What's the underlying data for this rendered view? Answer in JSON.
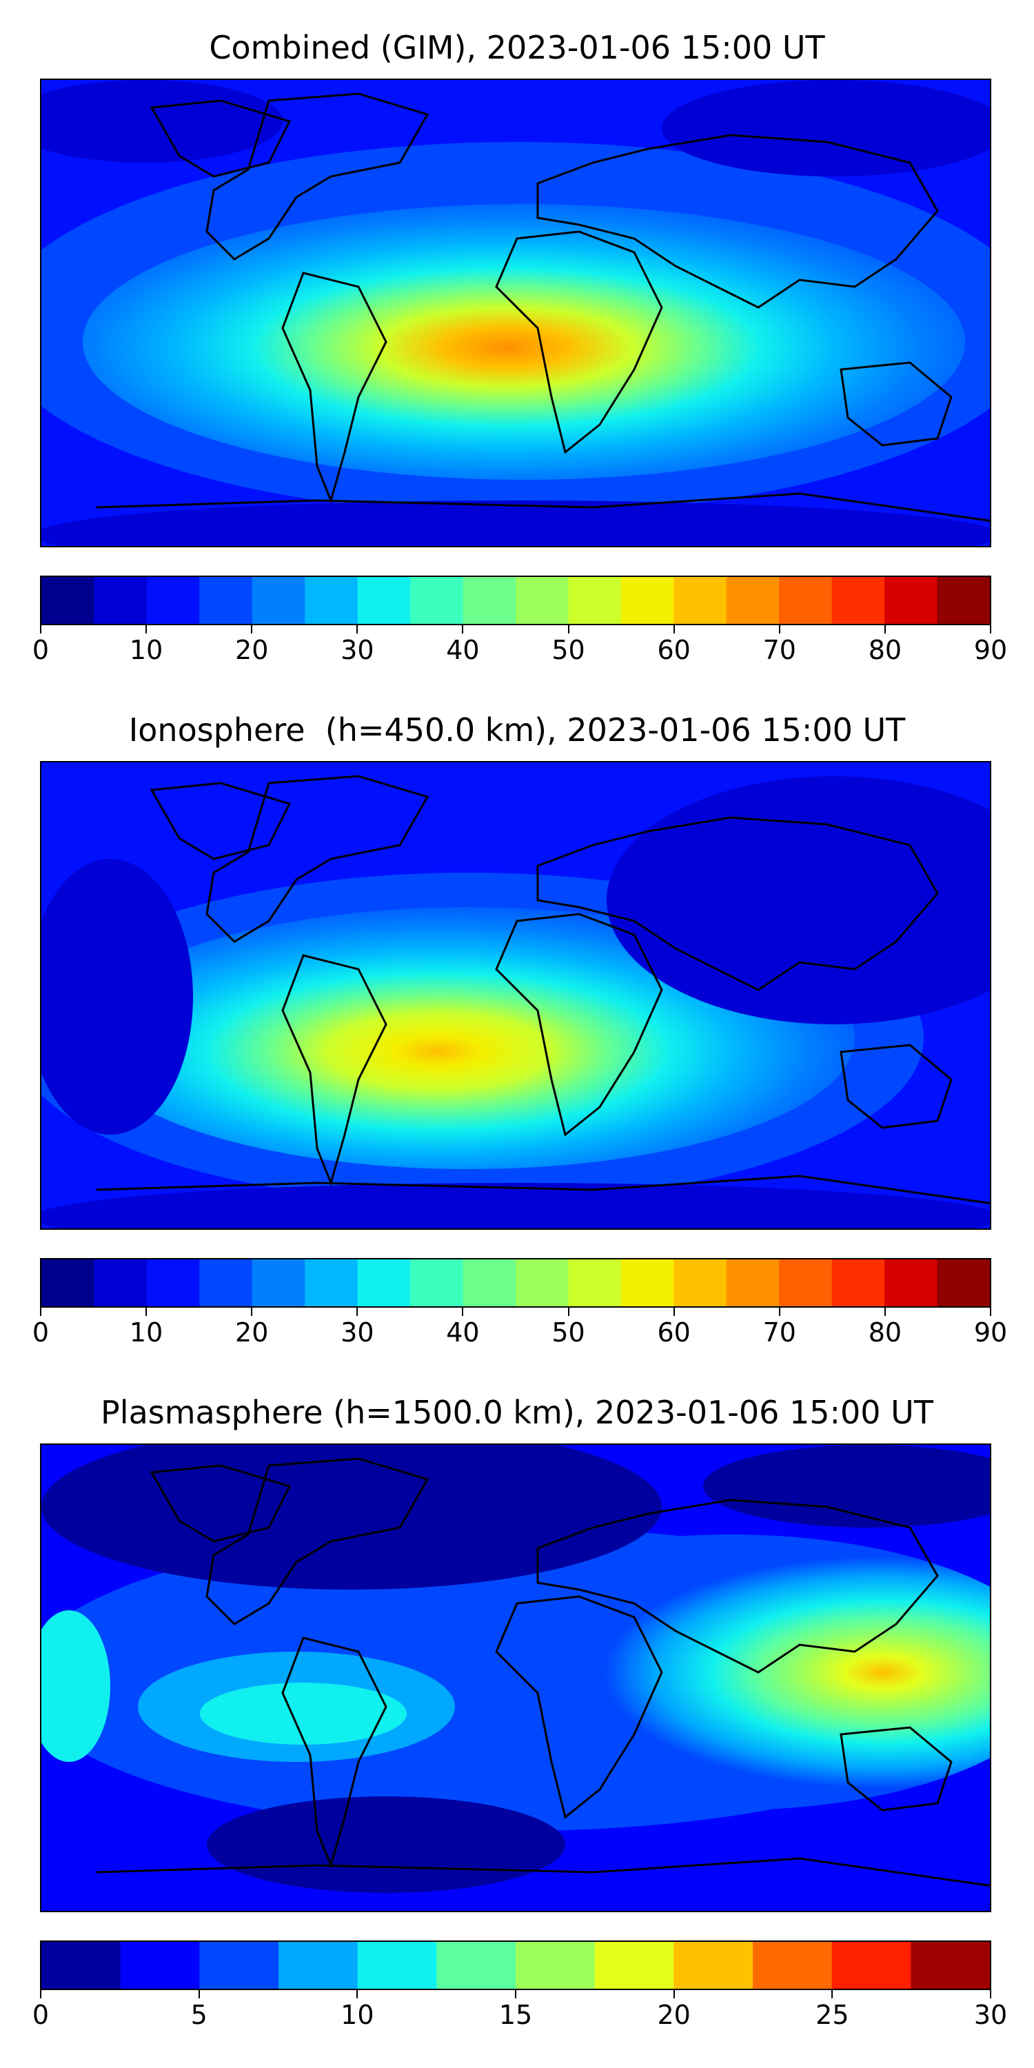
{
  "panels": [
    {
      "title": "Combined (GIM), 2023-01-06 15:00 UT",
      "colorbar": {
        "min": 0,
        "max": 90,
        "step": 5,
        "tick_labels": [
          "0",
          "10",
          "20",
          "30",
          "40",
          "50",
          "60",
          "70",
          "80",
          "90"
        ],
        "colors": [
          "#00008f",
          "#0000d6",
          "#0010ff",
          "#0048ff",
          "#0080ff",
          "#00b8ff",
          "#10f0ef",
          "#3cffbe",
          "#6cff8c",
          "#9cff5c",
          "#ccff2c",
          "#f4f000",
          "#ffc000",
          "#ff9000",
          "#ff6000",
          "#ff3000",
          "#d60000",
          "#8f0000"
        ]
      }
    },
    {
      "title": "Ionosphere  (h=450.0 km), 2023-01-06 15:00 UT",
      "colorbar": {
        "min": 0,
        "max": 90,
        "step": 5,
        "tick_labels": [
          "0",
          "10",
          "20",
          "30",
          "40",
          "50",
          "60",
          "70",
          "80",
          "90"
        ],
        "colors": [
          "#00008f",
          "#0000d6",
          "#0010ff",
          "#0048ff",
          "#0080ff",
          "#00b8ff",
          "#10f0ef",
          "#3cffbe",
          "#6cff8c",
          "#9cff5c",
          "#ccff2c",
          "#f4f000",
          "#ffc000",
          "#ff9000",
          "#ff6000",
          "#ff3000",
          "#d60000",
          "#8f0000"
        ]
      }
    },
    {
      "title": "Plasmasphere (h=1500.0 km), 2023-01-06 15:00 UT",
      "colorbar": {
        "min": 0,
        "max": 30,
        "step": 2.5,
        "tick_labels": [
          "0",
          "5",
          "10",
          "15",
          "20",
          "25",
          "30"
        ],
        "colors": [
          "#00009f",
          "#0000ff",
          "#0048ff",
          "#00a8ff",
          "#10f0ef",
          "#5cffa0",
          "#9cff5c",
          "#e4ff1c",
          "#ffc000",
          "#ff6a00",
          "#ff2000",
          "#a00000"
        ]
      }
    }
  ]
}
